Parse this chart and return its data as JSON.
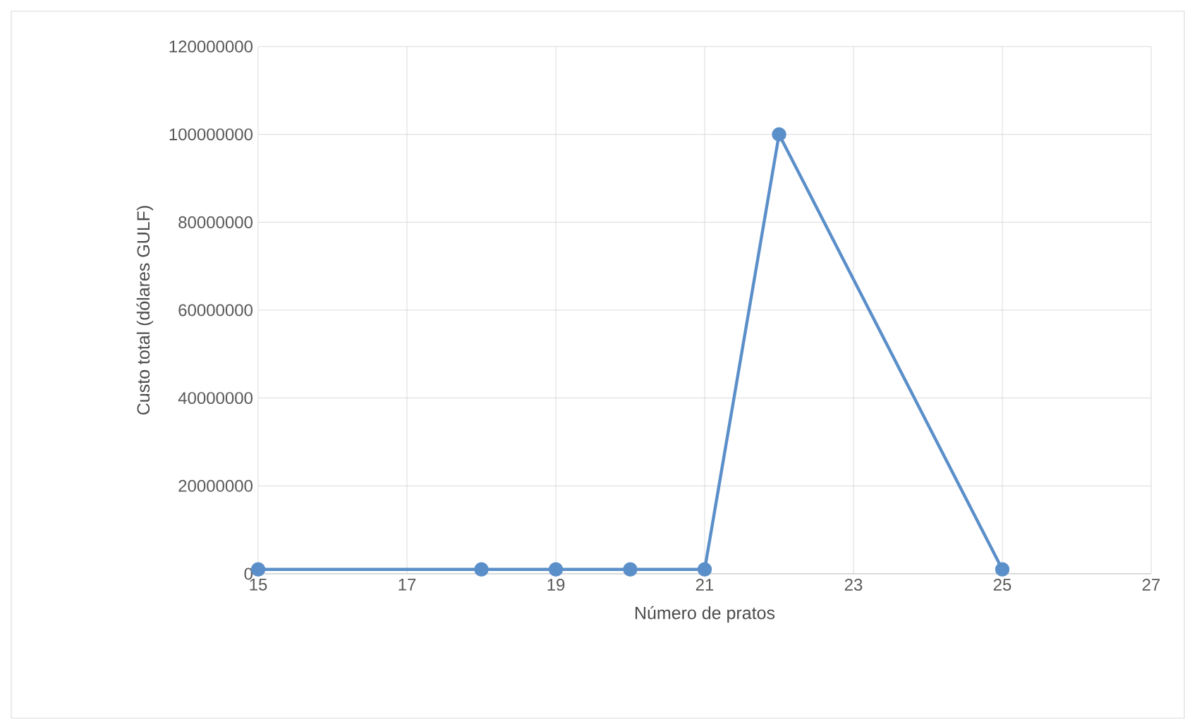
{
  "chart_data": {
    "type": "line",
    "xlabel": "Número  de pratos",
    "ylabel": "Custo total (dólares GULF)",
    "x": [
      15,
      18,
      19,
      20,
      21,
      22,
      25
    ],
    "series": [
      {
        "color": "#5b8fc9",
        "values": [
          1000000,
          1000000,
          1000000,
          1000000,
          1000000,
          100000000,
          1000000
        ]
      }
    ],
    "xlim": [
      15,
      27
    ],
    "xticks": [
      15,
      17,
      19,
      21,
      23,
      25,
      27
    ],
    "ylim": [
      0,
      120000000
    ],
    "yticks": [
      0,
      20000000,
      40000000,
      60000000,
      80000000,
      100000000,
      120000000
    ],
    "grid": true,
    "marker": "circle",
    "line_style": "solid"
  }
}
